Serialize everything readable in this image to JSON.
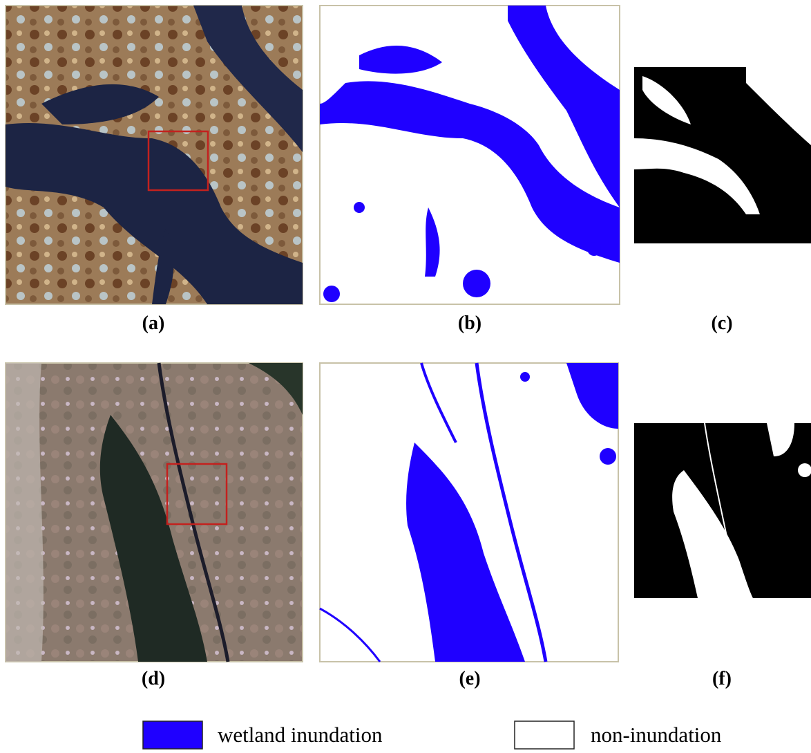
{
  "panels": [
    {
      "label": "(a)"
    },
    {
      "label": "(b)"
    },
    {
      "label": "(c)"
    },
    {
      "label": "(d)"
    },
    {
      "label": "(e)"
    },
    {
      "label": "(f)"
    }
  ],
  "legend": [
    {
      "label": "wetland inundation",
      "color": "#1f00ff"
    },
    {
      "label": "non-inundation",
      "color": "#ffffff"
    }
  ]
}
